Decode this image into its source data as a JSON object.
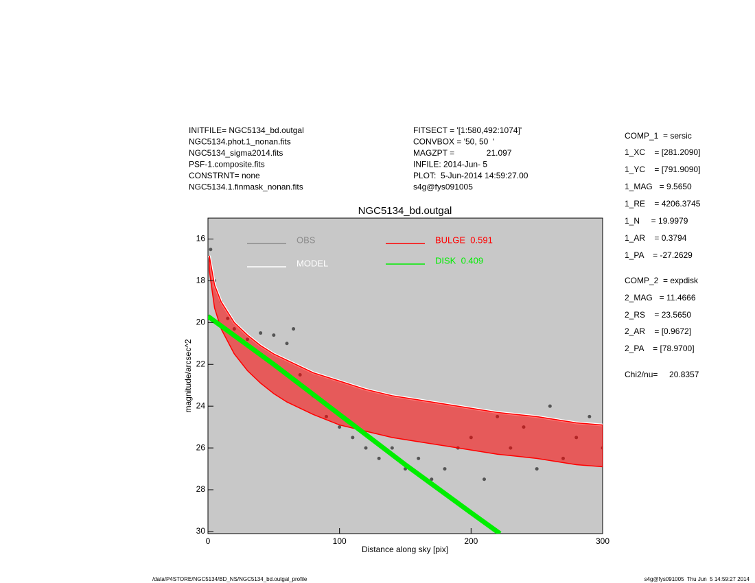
{
  "chart_data": {
    "type": "line",
    "title": "NGC5134_bd.outgal",
    "xlabel": "Distance along sky [pix]",
    "ylabel": "magnitude/arcsec^2",
    "xlim": [
      0,
      300
    ],
    "ylim": [
      30.1,
      15.0
    ],
    "xticks": [
      0,
      100,
      200,
      300
    ],
    "yticks": [
      16,
      18,
      20,
      22,
      24,
      26,
      28,
      30
    ],
    "background": "#c8c8c8",
    "header_left": [
      "INITFILE= NGC5134_bd.outgal",
      "NGC5134.phot.1_nonan.fits",
      "NGC5134_sigma2014.fits",
      "PSF-1.composite.fits",
      "CONSTRNT= none",
      "NGC5134.1.finmask_nonan.fits"
    ],
    "header_middle": [
      "FITSECT = '[1:580,492:1074]'",
      "CONVBOX = '50, 50  '",
      "MAGZPT =              21.097",
      "INFILE: 2014-Jun- 5",
      "PLOT:  5-Jun-2014 14:59:27.00",
      "s4g@fys091005"
    ],
    "params": [
      "COMP_1  = sersic",
      "1_XC    = [281.2090]",
      "1_YC    = [791.9090]",
      "1_MAG   = 9.5650",
      "1_RE    = 4206.3745",
      "1_N     = 19.9979",
      "1_AR    = 0.3794",
      "1_PA    = -27.2629",
      "COMP_2  = expdisk",
      "2_MAG   = 11.4666",
      "2_RS    = 23.5650",
      "2_AR    = [0.9672]",
      "2_PA    = [78.9700]",
      "Chi2/nu=     20.8357"
    ],
    "footer_left": "/data/P4STORE/NGC5134/BD_NS/NGC5134_bd.outgal_profile",
    "footer_right": "s4g@fys091005  Thu Jun  5 14:59:27 2014",
    "series": [
      {
        "name": "OBS",
        "color": "#555555",
        "legend_color": "#8c8c8c",
        "style": "points",
        "x": [
          2,
          5,
          10,
          15,
          20,
          30,
          40,
          50,
          60,
          65,
          70,
          80,
          90,
          100,
          110,
          120,
          130,
          140,
          150,
          160,
          170,
          180,
          190,
          200,
          210,
          220,
          230,
          240,
          250,
          260,
          270,
          280,
          290,
          300
        ],
        "values": [
          16.5,
          18,
          19,
          19.8,
          20.3,
          20.8,
          20.5,
          20.6,
          21.0,
          20.3,
          22.5,
          23.5,
          24.5,
          25.0,
          25.5,
          26.0,
          26.5,
          26.0,
          27.0,
          26.5,
          27.5,
          27.0,
          26.0,
          25.5,
          27.5,
          24.5,
          26.0,
          25.0,
          27.0,
          24.0,
          26.5,
          25.5,
          24.5,
          26.0
        ]
      },
      {
        "name": "MODEL",
        "color": "#ffffff",
        "style": "line",
        "x": [
          1,
          5,
          10,
          20,
          30,
          40,
          50,
          60,
          70,
          80,
          100,
          120,
          140,
          160,
          180,
          200,
          220,
          250,
          280,
          300
        ],
        "values": [
          16.8,
          18.2,
          19.0,
          20.0,
          20.6,
          21.1,
          21.5,
          21.8,
          22.1,
          22.4,
          22.8,
          23.2,
          23.5,
          23.7,
          23.9,
          24.1,
          24.3,
          24.5,
          24.8,
          24.9
        ]
      },
      {
        "name": "BULGE  0.591",
        "color": "#ff0000",
        "style": "band",
        "x": [
          1,
          5,
          10,
          20,
          30,
          40,
          50,
          60,
          70,
          80,
          100,
          120,
          140,
          160,
          180,
          200,
          220,
          250,
          280,
          300
        ],
        "values": [
          16.8,
          18.2,
          19.0,
          20.0,
          20.6,
          21.1,
          21.5,
          21.8,
          22.1,
          22.4,
          22.8,
          23.2,
          23.5,
          23.7,
          23.9,
          24.1,
          24.3,
          24.5,
          24.8,
          24.9
        ],
        "values_low": [
          17.5,
          19.3,
          20.3,
          21.5,
          22.3,
          22.9,
          23.4,
          23.8,
          24.1,
          24.4,
          24.9,
          25.2,
          25.5,
          25.7,
          25.9,
          26.1,
          26.3,
          26.5,
          26.8,
          26.9
        ]
      },
      {
        "name": "DISK  0.409",
        "color": "#00ee00",
        "style": "line",
        "x": [
          0,
          50,
          100,
          150,
          200,
          222
        ],
        "values": [
          19.7,
          22.0,
          24.4,
          26.8,
          29.1,
          30.1
        ]
      }
    ]
  }
}
